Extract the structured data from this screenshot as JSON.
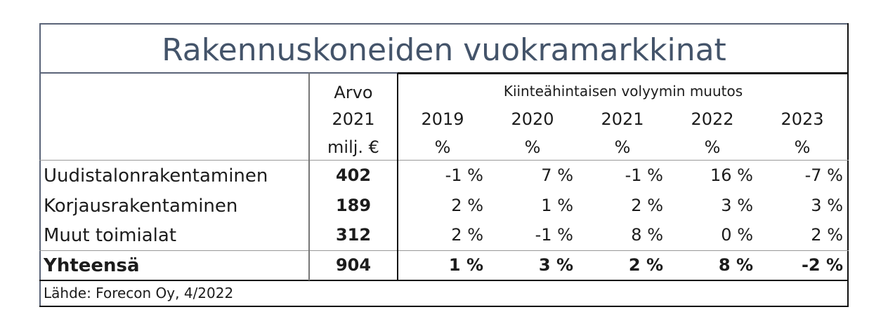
{
  "header": {
    "title": "Rakennuskoneiden vuokramarkkinat"
  },
  "table": {
    "value_header": [
      "Arvo",
      "2021",
      "milj. €"
    ],
    "change_header": "Kiinteähintaisen volyymin muutos",
    "years": [
      "2019",
      "2020",
      "2021",
      "2022",
      "2023"
    ],
    "units": [
      "%",
      "%",
      "%",
      "%",
      "%"
    ],
    "rows": [
      [
        "Uudistalonrakentaminen",
        "402",
        "-1 %",
        "7 %",
        "-1 %",
        "16 %",
        "-7 %"
      ],
      [
        "Korjausrakentaminen",
        "189",
        "2 %",
        "1 %",
        "2 %",
        "3 %",
        "3 %"
      ],
      [
        "Muut toimialat",
        "312",
        "2 %",
        "-1 %",
        "8 %",
        "0 %",
        "2 %"
      ]
    ],
    "total": [
      "Yhteensä",
      "904",
      "1 %",
      "3 %",
      "2 %",
      "8 %",
      "-2 %"
    ]
  },
  "footer": {
    "source": "Lähde: Forecon Oy, 4/2022"
  }
}
